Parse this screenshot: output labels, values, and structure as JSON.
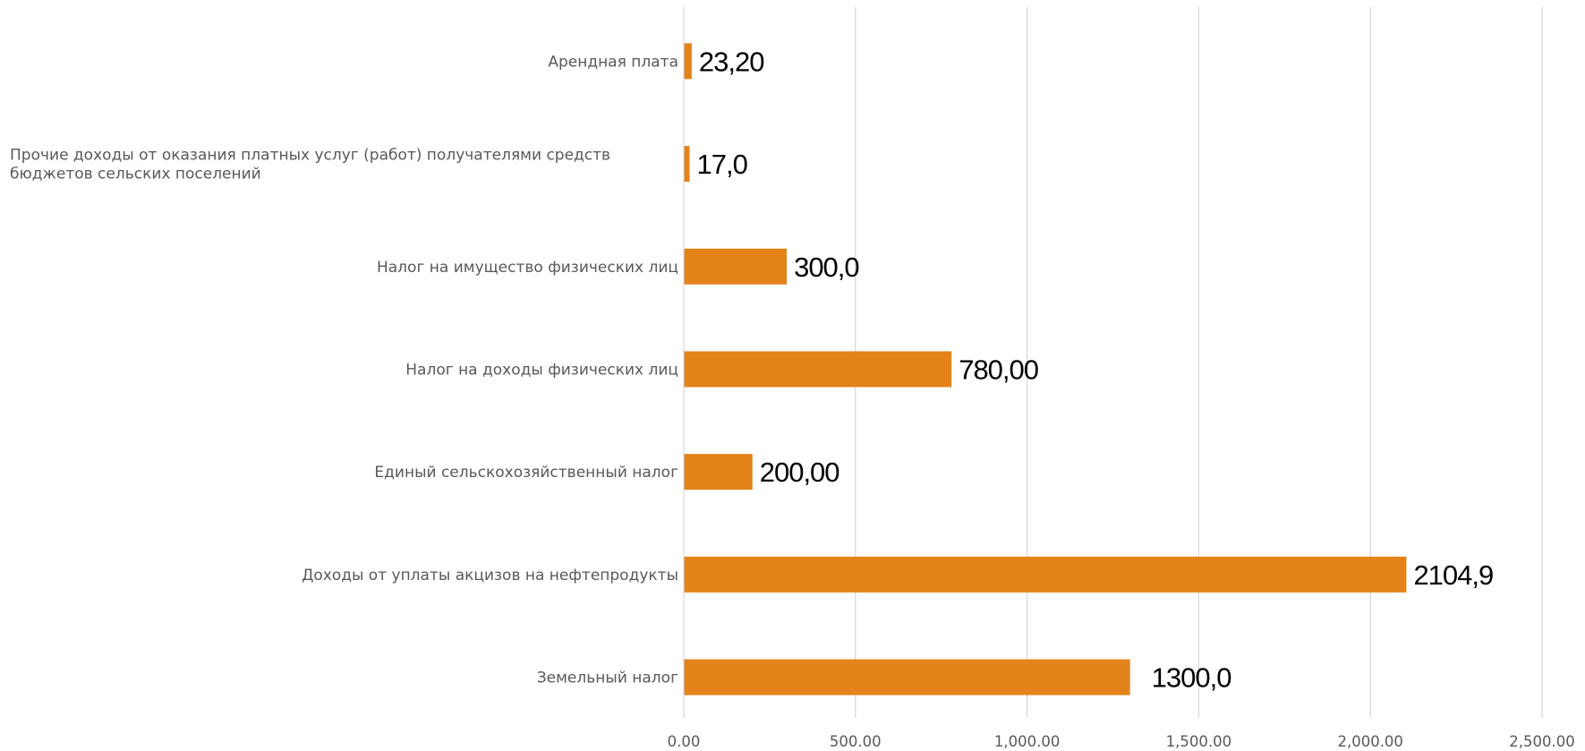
{
  "chart_data": {
    "type": "bar",
    "orientation": "horizontal",
    "title": "",
    "xlabel": "",
    "ylabel": "",
    "categories": [
      "Арендная плата",
      "Прочие доходы от оказания платных услуг (работ) получателями средств бюджетов сельских поселений",
      "Налог на имущество физических лиц",
      "Налог на доходы физических лиц",
      "Единый сельскохозяйственный налог",
      "Доходы от уплаты акцизов на нефтепродукты",
      "Земельный налог"
    ],
    "category_lines": [
      [
        "Арендная плата"
      ],
      [
        "Прочие доходы от оказания платных услуг (работ) получателями средств",
        "бюджетов сельских поселений"
      ],
      [
        "Налог на имущество физических лиц"
      ],
      [
        "Налог на доходы физических лиц"
      ],
      [
        "Единый сельскохозяйственный налог"
      ],
      [
        "Доходы от уплаты акцизов на нефтепродукты"
      ],
      [
        "Земельный налог"
      ]
    ],
    "values": [
      23.2,
      17.0,
      300.0,
      780.0,
      200.0,
      2104.9,
      1300.0
    ],
    "data_labels": [
      "23,20",
      "17,0",
      "300,0",
      "780,00",
      "200,00",
      "2104,9",
      "1300,0"
    ],
    "xlim": [
      0,
      2500
    ],
    "x_ticks": [
      0,
      500,
      1000,
      1500,
      2000,
      2500
    ],
    "x_tick_labels": [
      "0.00",
      "500.00",
      "1,000.00",
      "1,500.00",
      "2,000.00",
      "2,500.00"
    ],
    "grid": true,
    "legend": "none",
    "bar_color": "#E3831A"
  }
}
